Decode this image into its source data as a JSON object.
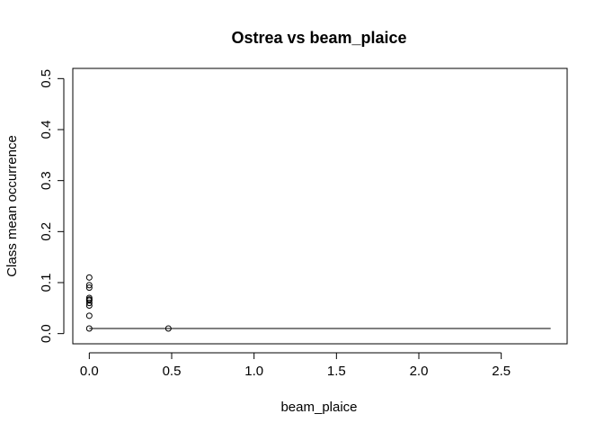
{
  "chart_data": {
    "type": "scatter",
    "title": "Ostrea vs beam_plaice",
    "xlabel": "beam_plaice",
    "ylabel": "Class mean occurrence",
    "xlim": [
      -0.1,
      2.9
    ],
    "ylim": [
      -0.02,
      0.52
    ],
    "xticks": [
      "0.0",
      "0.5",
      "1.0",
      "1.5",
      "2.0",
      "2.5"
    ],
    "yticks": [
      "0.0",
      "0.1",
      "0.2",
      "0.3",
      "0.4",
      "0.5"
    ],
    "grid": false,
    "series": [
      {
        "marker": "open-circle",
        "x": [
          0.0,
          0.0,
          0.0,
          0.0,
          0.0,
          0.0,
          0.0,
          0.0,
          0.0,
          0.0,
          0.48
        ],
        "y": [
          0.11,
          0.095,
          0.09,
          0.07,
          0.067,
          0.065,
          0.06,
          0.055,
          0.035,
          0.01,
          0.01
        ]
      },
      {
        "style": "line",
        "x": [
          0.0,
          2.8
        ],
        "y": [
          0.01,
          0.01
        ]
      }
    ]
  }
}
